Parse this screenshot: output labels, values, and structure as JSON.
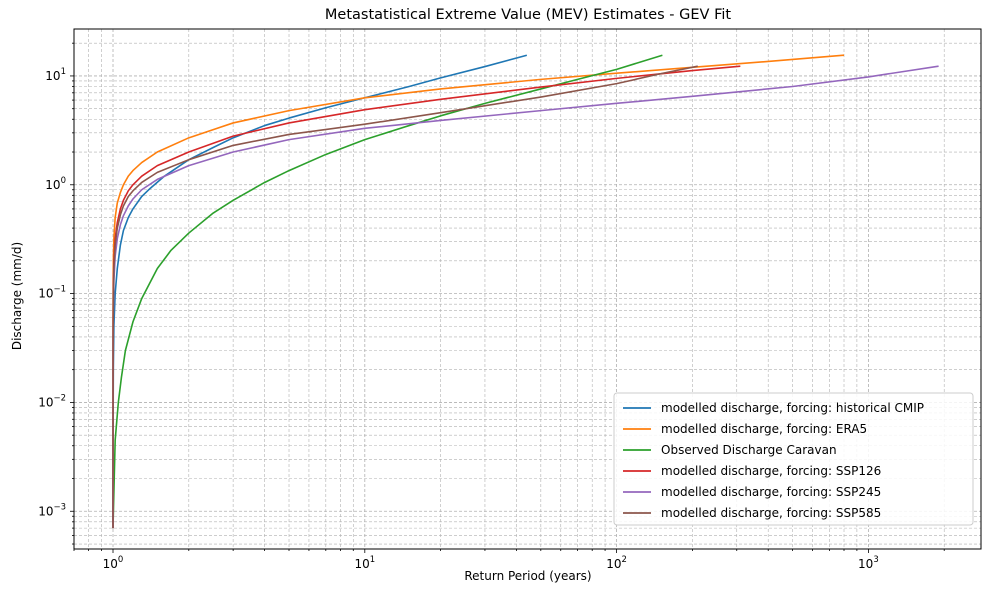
{
  "chart_data": {
    "type": "line",
    "title": "Metastatistical Extreme Value (MEV) Estimates - GEV Fit",
    "xlabel": "Return Period (years)",
    "ylabel": "Discharge (mm/d)",
    "xscale": "log",
    "yscale": "log",
    "xlim": [
      0.7,
      2800
    ],
    "ylim": [
      0.00045,
      27
    ],
    "grid": true,
    "legend_position": "lower-right",
    "x_tick_labels": [
      {
        "base": "10",
        "exp": "0",
        "value": 1
      },
      {
        "base": "10",
        "exp": "1",
        "value": 10
      },
      {
        "base": "10",
        "exp": "2",
        "value": 100
      },
      {
        "base": "10",
        "exp": "3",
        "value": 1000
      }
    ],
    "y_tick_labels": [
      {
        "base": "10",
        "exp": "−3",
        "value": 0.001
      },
      {
        "base": "10",
        "exp": "−2",
        "value": 0.01
      },
      {
        "base": "10",
        "exp": "−1",
        "value": 0.1
      },
      {
        "base": "10",
        "exp": "0",
        "value": 1
      },
      {
        "base": "10",
        "exp": "1",
        "value": 10
      }
    ],
    "series": [
      {
        "name": "modelled discharge, forcing: historical CMIP",
        "color": "#1f77b4",
        "x": [
          1.0,
          1.001,
          1.003,
          1.008,
          1.02,
          1.04,
          1.07,
          1.1,
          1.15,
          1.2,
          1.3,
          1.4,
          1.6,
          2,
          2.5,
          3,
          4,
          5,
          7,
          10,
          15,
          20,
          30,
          44
        ],
        "y": [
          0.0007,
          0.006,
          0.02,
          0.05,
          0.1,
          0.17,
          0.28,
          0.38,
          0.5,
          0.6,
          0.78,
          0.92,
          1.2,
          1.7,
          2.2,
          2.7,
          3.5,
          4.1,
          5.1,
          6.3,
          8.0,
          9.6,
          12.2,
          15.5
        ]
      },
      {
        "name": "modelled discharge, forcing: ERA5",
        "color": "#ff7f0e",
        "x": [
          1.0,
          1.001,
          1.003,
          1.008,
          1.02,
          1.04,
          1.07,
          1.1,
          1.15,
          1.2,
          1.3,
          1.5,
          2,
          3,
          5,
          10,
          20,
          50,
          100,
          200,
          400,
          800
        ],
        "y": [
          0.0007,
          0.1,
          0.2,
          0.32,
          0.5,
          0.68,
          0.85,
          1.0,
          1.2,
          1.35,
          1.6,
          2.0,
          2.7,
          3.7,
          4.8,
          6.3,
          7.6,
          9.3,
          10.6,
          12.0,
          13.6,
          15.5
        ]
      },
      {
        "name": "Observed Discharge Caravan",
        "color": "#2ca02c",
        "x": [
          1.0,
          1.02,
          1.05,
          1.08,
          1.12,
          1.2,
          1.3,
          1.5,
          1.7,
          2,
          2.5,
          3,
          4,
          5,
          7,
          10,
          15,
          20,
          30,
          50,
          70,
          100,
          152
        ],
        "y": [
          0.0007,
          0.0045,
          0.01,
          0.017,
          0.03,
          0.055,
          0.09,
          0.17,
          0.25,
          0.36,
          0.55,
          0.72,
          1.05,
          1.35,
          1.9,
          2.6,
          3.5,
          4.3,
          5.6,
          7.6,
          9.3,
          11.5,
          15.5
        ]
      },
      {
        "name": "modelled discharge, forcing: SSP126",
        "color": "#d62728",
        "x": [
          1.0,
          1.001,
          1.003,
          1.008,
          1.02,
          1.04,
          1.07,
          1.1,
          1.15,
          1.2,
          1.3,
          1.5,
          2,
          3,
          5,
          10,
          20,
          50,
          100,
          200,
          310
        ],
        "y": [
          0.0007,
          0.06,
          0.12,
          0.2,
          0.32,
          0.45,
          0.6,
          0.72,
          0.88,
          1.0,
          1.2,
          1.5,
          2.0,
          2.8,
          3.7,
          4.9,
          6.1,
          7.9,
          9.5,
          11.2,
          12.3
        ]
      },
      {
        "name": "modelled discharge, forcing: SSP245",
        "color": "#9467bd",
        "x": [
          1.0,
          1.001,
          1.003,
          1.008,
          1.02,
          1.04,
          1.07,
          1.1,
          1.15,
          1.2,
          1.3,
          1.5,
          2,
          3,
          5,
          10,
          20,
          50,
          100,
          200,
          500,
          1000,
          1900
        ],
        "y": [
          0.0007,
          0.03,
          0.07,
          0.13,
          0.22,
          0.32,
          0.43,
          0.52,
          0.64,
          0.74,
          0.9,
          1.12,
          1.5,
          2.0,
          2.6,
          3.3,
          3.9,
          4.8,
          5.6,
          6.5,
          8.0,
          9.8,
          12.3
        ]
      },
      {
        "name": "modelled discharge, forcing: SSP585",
        "color": "#8c564b",
        "x": [
          1.0,
          1.001,
          1.003,
          1.008,
          1.02,
          1.04,
          1.07,
          1.1,
          1.15,
          1.2,
          1.3,
          1.5,
          2,
          3,
          5,
          10,
          20,
          50,
          100,
          150,
          210
        ],
        "y": [
          0.0007,
          0.04,
          0.09,
          0.17,
          0.28,
          0.4,
          0.53,
          0.64,
          0.78,
          0.88,
          1.05,
          1.3,
          1.7,
          2.3,
          2.9,
          3.6,
          4.6,
          6.4,
          8.5,
          10.5,
          12.3
        ]
      }
    ]
  }
}
